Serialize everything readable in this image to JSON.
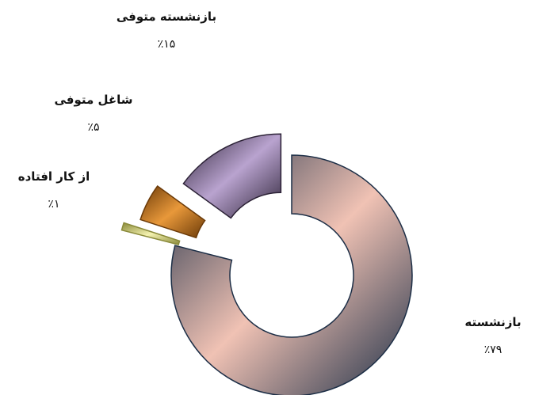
{
  "chart_data": {
    "type": "pie",
    "style": "exploded-3d-donut",
    "title": "",
    "slices": [
      {
        "label": "بازنشسته",
        "value": 79,
        "value_label": "٪۷۹",
        "color_dark": "#1c2e46",
        "color_light": "#f0c2b4"
      },
      {
        "label": "از کار افتاده",
        "value": 1,
        "value_label": "٪۱",
        "color_dark": "#8a8a3a",
        "color_light": "#f4f2b0"
      },
      {
        "label": "شاغل متوفی",
        "value": 5,
        "value_label": "٪۵",
        "color_dark": "#6b3a08",
        "color_light": "#e8983a"
      },
      {
        "label": "بازنشسته متوفی",
        "value": 15,
        "value_label": "٪۱۵",
        "color_dark": "#2c2236",
        "color_light": "#b9a3cf"
      }
    ]
  }
}
